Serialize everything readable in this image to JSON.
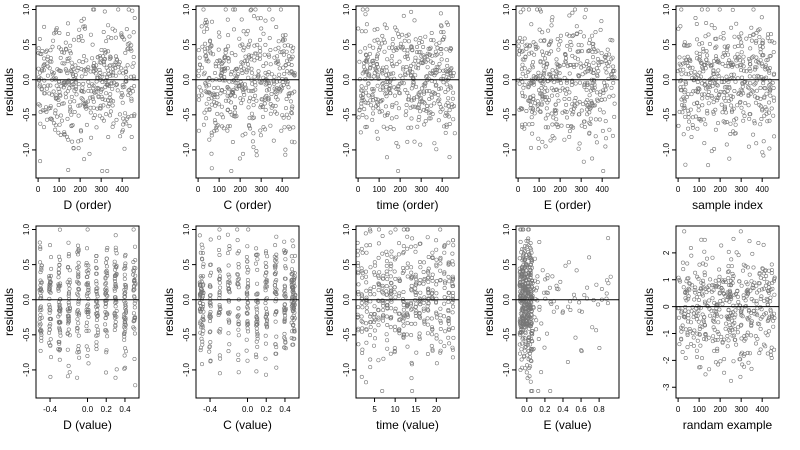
{
  "colors": {
    "points": "#777777",
    "axis": "#000000",
    "background": "#ffffff"
  },
  "chart_data": [
    {
      "id": "p1",
      "type": "scatter",
      "xlabel": "D (order)",
      "ylabel": "residuals",
      "xlim": [
        -10,
        480
      ],
      "ylim": [
        -1.4,
        1.05
      ],
      "xticks": [
        {
          "v": 0,
          "label": "0"
        },
        {
          "v": 100,
          "label": "100"
        },
        {
          "v": 200,
          "label": "200"
        },
        {
          "v": 300,
          "label": "300"
        },
        {
          "v": 400,
          "label": "400"
        }
      ],
      "yticks": [
        {
          "v": -1.0,
          "label": "-1.0"
        },
        {
          "v": -0.5,
          "label": "-0.5"
        },
        {
          "v": 0.0,
          "label": "0.0"
        },
        {
          "v": 0.5,
          "label": "0.5"
        },
        {
          "v": 1.0,
          "label": "1.0"
        }
      ],
      "refline": 0,
      "gen": {
        "n": 460,
        "mode": "index",
        "xmin": 0,
        "xmax": 460,
        "sd": 0.42,
        "clip": [
          -1.3,
          1.0
        ]
      }
    },
    {
      "id": "p2",
      "type": "scatter",
      "xlabel": "C (order)",
      "ylabel": "residuals",
      "xlim": [
        -10,
        480
      ],
      "ylim": [
        -1.4,
        1.05
      ],
      "xticks": [
        {
          "v": 0,
          "label": "0"
        },
        {
          "v": 100,
          "label": "100"
        },
        {
          "v": 200,
          "label": "200"
        },
        {
          "v": 300,
          "label": "300"
        },
        {
          "v": 400,
          "label": "400"
        }
      ],
      "yticks": [
        {
          "v": -1.0,
          "label": "-1.0"
        },
        {
          "v": -0.5,
          "label": "-0.5"
        },
        {
          "v": 0.0,
          "label": "0.0"
        },
        {
          "v": 0.5,
          "label": "0.5"
        },
        {
          "v": 1.0,
          "label": "1.0"
        }
      ],
      "refline": 0,
      "gen": {
        "n": 460,
        "mode": "index",
        "xmin": 0,
        "xmax": 460,
        "sd": 0.42,
        "clip": [
          -1.3,
          1.0
        ]
      }
    },
    {
      "id": "p3",
      "type": "scatter",
      "xlabel": "time (order)",
      "ylabel": "residuals",
      "xlim": [
        -10,
        480
      ],
      "ylim": [
        -1.4,
        1.05
      ],
      "xticks": [
        {
          "v": 0,
          "label": "0"
        },
        {
          "v": 100,
          "label": "100"
        },
        {
          "v": 200,
          "label": "200"
        },
        {
          "v": 300,
          "label": "300"
        },
        {
          "v": 400,
          "label": "400"
        }
      ],
      "yticks": [
        {
          "v": -1.0,
          "label": "-1.0"
        },
        {
          "v": -0.5,
          "label": "-0.5"
        },
        {
          "v": 0.0,
          "label": "0.0"
        },
        {
          "v": 0.5,
          "label": "0.5"
        },
        {
          "v": 1.0,
          "label": "1.0"
        }
      ],
      "refline": 0,
      "gen": {
        "n": 460,
        "mode": "index",
        "xmin": 0,
        "xmax": 460,
        "sd": 0.42,
        "clip": [
          -1.3,
          1.0
        ]
      }
    },
    {
      "id": "p4",
      "type": "scatter",
      "xlabel": "E (order)",
      "ylabel": "residuals",
      "xlim": [
        -10,
        480
      ],
      "ylim": [
        -1.4,
        1.05
      ],
      "xticks": [
        {
          "v": 0,
          "label": "0"
        },
        {
          "v": 100,
          "label": "100"
        },
        {
          "v": 200,
          "label": "200"
        },
        {
          "v": 300,
          "label": "300"
        },
        {
          "v": 400,
          "label": "400"
        }
      ],
      "yticks": [
        {
          "v": -1.0,
          "label": "-1.0"
        },
        {
          "v": -0.5,
          "label": "-0.5"
        },
        {
          "v": 0.0,
          "label": "0.0"
        },
        {
          "v": 0.5,
          "label": "0.5"
        },
        {
          "v": 1.0,
          "label": "1.0"
        }
      ],
      "refline": 0,
      "gen": {
        "n": 460,
        "mode": "index",
        "xmin": 0,
        "xmax": 460,
        "sd": 0.42,
        "clip": [
          -1.3,
          1.0
        ]
      }
    },
    {
      "id": "p5",
      "type": "scatter",
      "xlabel": "sample index",
      "ylabel": "residuals",
      "xlim": [
        -10,
        480
      ],
      "ylim": [
        -1.4,
        1.05
      ],
      "xticks": [
        {
          "v": 0,
          "label": "0"
        },
        {
          "v": 100,
          "label": "100"
        },
        {
          "v": 200,
          "label": "200"
        },
        {
          "v": 300,
          "label": "300"
        },
        {
          "v": 400,
          "label": "400"
        }
      ],
      "yticks": [
        {
          "v": -1.0,
          "label": "-1.0"
        },
        {
          "v": -0.5,
          "label": "-0.5"
        },
        {
          "v": 0.0,
          "label": "0.0"
        },
        {
          "v": 0.5,
          "label": "0.5"
        },
        {
          "v": 1.0,
          "label": "1.0"
        }
      ],
      "refline": 0,
      "gen": {
        "n": 460,
        "mode": "index",
        "xmin": 0,
        "xmax": 460,
        "sd": 0.42,
        "clip": [
          -1.3,
          1.0
        ]
      }
    },
    {
      "id": "p6",
      "type": "scatter",
      "xlabel": "D (value)",
      "ylabel": "residuals",
      "xlim": [
        -0.55,
        0.55
      ],
      "ylim": [
        -1.4,
        1.05
      ],
      "xticks": [
        {
          "v": -0.4,
          "label": "-0.4"
        },
        {
          "v": 0.0,
          "label": "0.0"
        },
        {
          "v": 0.2,
          "label": "0.2"
        },
        {
          "v": 0.4,
          "label": "0.4"
        }
      ],
      "yticks": [
        {
          "v": -1.0,
          "label": "-1.0"
        },
        {
          "v": -0.5,
          "label": "-0.5"
        },
        {
          "v": 0.0,
          "label": "0.0"
        },
        {
          "v": 0.5,
          "label": "0.5"
        },
        {
          "v": 1.0,
          "label": "1.0"
        }
      ],
      "refline": 0,
      "gen": {
        "n": 460,
        "mode": "columns",
        "cols": [
          -0.5,
          -0.4,
          -0.3,
          -0.2,
          -0.1,
          0.0,
          0.1,
          0.2,
          0.3,
          0.4,
          0.5
        ],
        "jitter": 0.012,
        "sd": 0.42,
        "clip": [
          -1.3,
          1.0
        ]
      }
    },
    {
      "id": "p7",
      "type": "scatter",
      "xlabel": "C (value)",
      "ylabel": "residuals",
      "xlim": [
        -0.55,
        0.55
      ],
      "ylim": [
        -1.4,
        1.05
      ],
      "xticks": [
        {
          "v": -0.4,
          "label": "-0.4"
        },
        {
          "v": 0.0,
          "label": "0.0"
        },
        {
          "v": 0.2,
          "label": "0.2"
        },
        {
          "v": 0.4,
          "label": "0.4"
        }
      ],
      "yticks": [
        {
          "v": -1.0,
          "label": "-1.0"
        },
        {
          "v": -0.5,
          "label": "-0.5"
        },
        {
          "v": 0.0,
          "label": "0.0"
        },
        {
          "v": 0.5,
          "label": "0.5"
        },
        {
          "v": 1.0,
          "label": "1.0"
        }
      ],
      "refline": 0,
      "gen": {
        "n": 460,
        "mode": "columns",
        "cols": [
          -0.5,
          -0.48,
          -0.4,
          -0.3,
          -0.2,
          -0.1,
          0.0,
          0.1,
          0.2,
          0.3,
          0.4,
          0.48,
          0.5
        ],
        "jitter": 0.01,
        "sd": 0.42,
        "clip": [
          -1.3,
          1.0
        ]
      }
    },
    {
      "id": "p8",
      "type": "scatter",
      "xlabel": "time (value)",
      "ylabel": "residuals",
      "xlim": [
        0.5,
        25.5
      ],
      "ylim": [
        -1.4,
        1.05
      ],
      "xticks": [
        {
          "v": 5,
          "label": "5"
        },
        {
          "v": 10,
          "label": "10"
        },
        {
          "v": 15,
          "label": "15"
        },
        {
          "v": 20,
          "label": "20"
        }
      ],
      "yticks": [
        {
          "v": -1.0,
          "label": "-1.0"
        },
        {
          "v": -0.5,
          "label": "-0.5"
        },
        {
          "v": 0.0,
          "label": "0.0"
        },
        {
          "v": 0.5,
          "label": "0.5"
        },
        {
          "v": 1.0,
          "label": "1.0"
        }
      ],
      "refline": 0,
      "gen": {
        "n": 460,
        "mode": "columns",
        "cols": [
          1,
          2,
          3,
          4,
          5,
          6,
          7,
          8,
          9,
          10,
          11,
          12,
          13,
          14,
          15,
          16,
          17,
          18,
          19,
          20,
          21,
          22,
          23,
          24
        ],
        "jitter": 0.15,
        "sd": 0.42,
        "clip": [
          -1.3,
          1.0
        ]
      }
    },
    {
      "id": "p9",
      "type": "scatter",
      "xlabel": "E (value)",
      "ylabel": "residuals",
      "xlim": [
        -0.12,
        1.02
      ],
      "ylim": [
        -1.4,
        1.05
      ],
      "xticks": [
        {
          "v": 0.0,
          "label": "0.0"
        },
        {
          "v": 0.2,
          "label": "0.2"
        },
        {
          "v": 0.4,
          "label": "0.4"
        },
        {
          "v": 0.6,
          "label": "0.6"
        },
        {
          "v": 0.8,
          "label": "0.8"
        }
      ],
      "yticks": [
        {
          "v": -1.0,
          "label": "-1.0"
        },
        {
          "v": -0.5,
          "label": "-0.5"
        },
        {
          "v": 0.0,
          "label": "0.0"
        },
        {
          "v": 0.5,
          "label": "0.5"
        },
        {
          "v": 1.0,
          "label": "1.0"
        }
      ],
      "refline": 0,
      "gen": {
        "n": 460,
        "mode": "skew",
        "xmin": -0.08,
        "xmax": 1.0,
        "sd": 0.42,
        "clip": [
          -1.3,
          1.0
        ]
      }
    },
    {
      "id": "p10",
      "type": "scatter",
      "xlabel": "randam example",
      "ylabel": "residuals",
      "xlim": [
        -10,
        480
      ],
      "ylim": [
        -3.4,
        3.0
      ],
      "xticks": [
        {
          "v": 0,
          "label": "0"
        },
        {
          "v": 100,
          "label": "100"
        },
        {
          "v": 200,
          "label": "200"
        },
        {
          "v": 300,
          "label": "300"
        },
        {
          "v": 400,
          "label": "400"
        }
      ],
      "yticks": [
        {
          "v": -3,
          "label": "-3"
        },
        {
          "v": -2,
          "label": "-2"
        },
        {
          "v": -1,
          "label": "-1"
        },
        {
          "v": 0,
          "label": "0"
        },
        {
          "v": 1,
          "label": "1"
        },
        {
          "v": 2,
          "label": "2"
        }
      ],
      "refline": 0,
      "gen": {
        "n": 460,
        "mode": "index",
        "xmin": 0,
        "xmax": 460,
        "sd": 1.0,
        "clip": [
          -3.0,
          2.8
        ]
      }
    }
  ]
}
